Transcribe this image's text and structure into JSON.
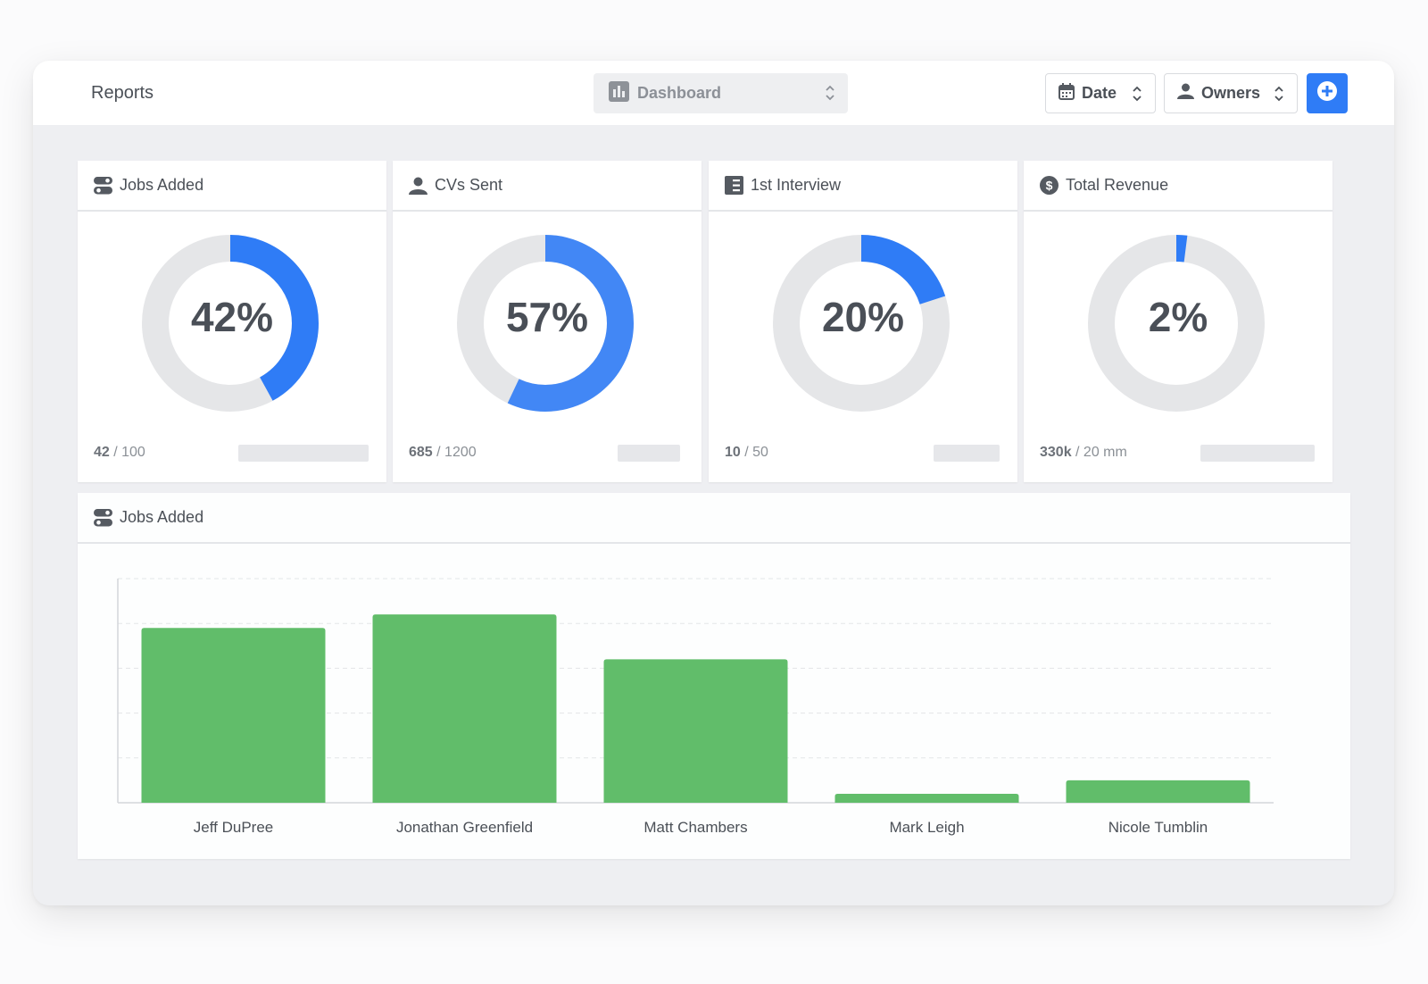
{
  "header": {
    "title": "Reports",
    "view_select": "Dashboard",
    "date_filter": "Date",
    "owners_filter": "Owners",
    "add_button_icon": "plus-circle-icon"
  },
  "colors": {
    "accent": "#2f7cf6",
    "donut_track": "#e5e6e8",
    "bar_green": "#61bd6a"
  },
  "kpis": [
    {
      "title": "Jobs Added",
      "icon": "toggle-icon",
      "percent": 42,
      "label": "42%",
      "value": "42",
      "total": " / 100",
      "color": "#2f7cf6"
    },
    {
      "title": "CVs Sent",
      "icon": "user-icon",
      "percent": 57,
      "label": "57%",
      "value": "685",
      "total": " / 1200",
      "color": "#4287f5"
    },
    {
      "title": "1st Interview",
      "icon": "document-icon",
      "percent": 20,
      "label": "20%",
      "value": "10",
      "total": " / 50",
      "color": "#2f7cf6"
    },
    {
      "title": "Total Revenue",
      "icon": "dollar-icon",
      "percent": 2,
      "label": "2%",
      "value": "330k",
      "total": " / 20 mm",
      "color": "#2f7cf6"
    }
  ],
  "bar_panel": {
    "title": "Jobs Added",
    "icon": "toggle-icon"
  },
  "chart_data": {
    "type": "bar",
    "categories": [
      "Jeff DuPree",
      "Jonathan Greenfield",
      "Matt Chambers",
      "Mark Leigh",
      "Nicole Tumblin"
    ],
    "values": [
      39,
      42,
      32,
      2,
      5
    ],
    "ylim": [
      0,
      50
    ],
    "grid": true,
    "title": "",
    "xlabel": "",
    "ylabel": ""
  }
}
